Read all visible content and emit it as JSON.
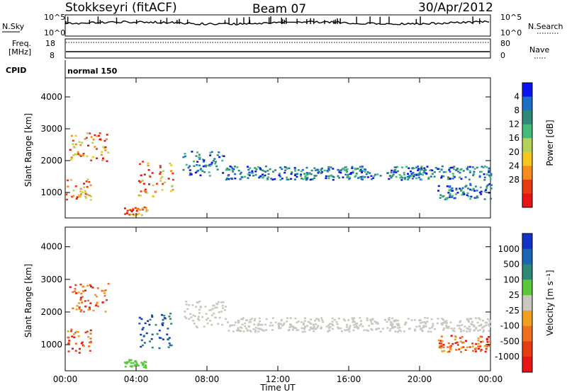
{
  "header": {
    "station": "Stokkseyri (fitACF)",
    "beam": "Beam 07",
    "date": "30/Apr/2012"
  },
  "top_panels": {
    "nsky_label": "N.Sky",
    "nsearch_label": "N.Search",
    "count_ticks": [
      "10^5",
      "10^0"
    ],
    "freq_label_1": "Freq.",
    "freq_label_2": "[MHz]",
    "freq_ticks": [
      "18",
      "8"
    ],
    "nave_label": "Nave",
    "nave_ticks": [
      "80",
      "0"
    ],
    "cpid_label": "CPID",
    "cpid_value": "normal 150"
  },
  "chart_data": [
    {
      "type": "heatmap",
      "name": "power",
      "ylabel": "Slant Range [km]",
      "xlabel": "",
      "xlim": [
        0,
        24
      ],
      "ylim": [
        200,
        4600
      ],
      "x_ticks": [
        0,
        4,
        8,
        12,
        16,
        20,
        24
      ],
      "y_ticks": [
        1000,
        2000,
        3000,
        4000
      ],
      "colorbar": {
        "label": "Power [dB]",
        "ticks": [
          "4",
          "8",
          "12",
          "16",
          "20",
          "24",
          "28"
        ],
        "colors": [
          "#0a14f0",
          "#1e6ec8",
          "#2e8a76",
          "#43b97a",
          "#b4d25a",
          "#f5c81e",
          "#f58c1e",
          "#e63c14",
          "#e61414"
        ]
      }
    },
    {
      "type": "heatmap",
      "name": "velocity",
      "ylabel": "Slant Range [km]",
      "xlabel": "Time UT",
      "xlim": [
        0,
        24
      ],
      "ylim": [
        200,
        4600
      ],
      "x_ticks": [
        0,
        4,
        8,
        12,
        16,
        20,
        24
      ],
      "x_tick_labels": [
        "00:00",
        "04:00",
        "08:00",
        "12:00",
        "16:00",
        "20:00",
        "00:00"
      ],
      "y_ticks": [
        1000,
        2000,
        3000,
        4000
      ],
      "colorbar": {
        "label": "Velocity [m s⁻¹]",
        "ticks": [
          "1000",
          "500",
          "100",
          "25",
          "-25",
          "-100",
          "-500",
          "-1000"
        ],
        "colors": [
          "#1432c8",
          "#1e64b4",
          "#2e8a76",
          "#5ac83c",
          "#c8c8c0",
          "#f0a01e",
          "#f06e1e",
          "#e63c14",
          "#e61414"
        ]
      }
    }
  ]
}
